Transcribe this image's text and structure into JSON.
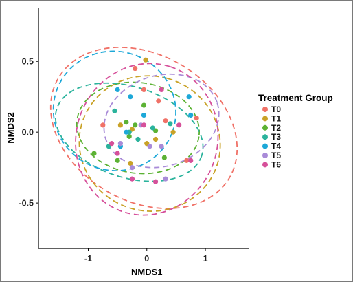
{
  "chart_data": {
    "type": "scatter",
    "xlabel": "NMDS1",
    "ylabel": "NMDS2",
    "xlim": [
      -1.85,
      1.75
    ],
    "ylim": [
      -0.82,
      0.88
    ],
    "x_ticks": [
      -1,
      0,
      1
    ],
    "y_ticks": [
      0.5,
      0.0,
      -0.5
    ],
    "x_tick_labels": [
      "-1",
      "0",
      "1"
    ],
    "y_tick_labels": [
      "0.5",
      "0.0",
      "-0.5"
    ],
    "grid": false,
    "legend": {
      "title": "Treatment Group",
      "position": "right"
    },
    "series": [
      {
        "name": "T0",
        "color": "#F07167",
        "points": [
          [
            -0.2,
            0.45
          ],
          [
            -0.05,
            0.3
          ],
          [
            0.2,
            0.22
          ],
          [
            0.85,
            0.1
          ],
          [
            0.32,
            0.08
          ],
          [
            0.68,
            -0.2
          ],
          [
            -0.75,
            0.05
          ]
        ],
        "ellipse": {
          "cx": -0.05,
          "cy": 0.03,
          "rx": 1.25,
          "ry": 0.7,
          "angle": -60
        }
      },
      {
        "name": "T1",
        "color": "#C9A227",
        "points": [
          [
            -0.02,
            0.51
          ],
          [
            0.45,
            0.0
          ],
          [
            0.15,
            -0.05
          ],
          [
            -0.25,
            0.02
          ],
          [
            0.0,
            -0.08
          ],
          [
            -0.28,
            -0.22
          ],
          [
            -0.45,
            0.05
          ]
        ],
        "ellipse": {
          "cx": 0.05,
          "cy": -0.08,
          "rx": 1.15,
          "ry": 0.5,
          "angle": -75
        }
      },
      {
        "name": "T2",
        "color": "#5CB234",
        "points": [
          [
            -0.05,
            0.19
          ],
          [
            -0.35,
            0.07
          ],
          [
            -0.3,
            -0.03
          ],
          [
            0.15,
            0.01
          ],
          [
            -0.2,
            0.05
          ],
          [
            0.3,
            -0.18
          ],
          [
            -0.9,
            -0.15
          ],
          [
            -0.5,
            -0.2
          ]
        ],
        "ellipse": {
          "cx": -0.15,
          "cy": 0.03,
          "rx": 1.05,
          "ry": 0.32,
          "angle": 8
        }
      },
      {
        "name": "T3",
        "color": "#2BB39C",
        "points": [
          [
            0.4,
            0.06
          ],
          [
            0.1,
            0.03
          ],
          [
            -0.3,
            0.0
          ],
          [
            -0.15,
            -0.05
          ],
          [
            -0.65,
            -0.1
          ],
          [
            -0.55,
            0.15
          ]
        ],
        "ellipse": {
          "cx": -0.3,
          "cy": 0.0,
          "rx": 1.3,
          "ry": 0.32,
          "angle": 18
        }
      },
      {
        "name": "T4",
        "color": "#1DA8D8",
        "points": [
          [
            -0.5,
            0.3
          ],
          [
            -0.28,
            0.25
          ],
          [
            -0.35,
            0.0
          ],
          [
            -0.05,
            0.12
          ],
          [
            0.72,
            0.25
          ],
          [
            -0.45,
            -0.1
          ],
          [
            0.75,
            0.12
          ]
        ],
        "ellipse": {
          "cx": -0.55,
          "cy": 0.15,
          "rx": 1.05,
          "ry": 0.42,
          "angle": 20
        }
      },
      {
        "name": "T5",
        "color": "#A98BD8",
        "points": [
          [
            -0.1,
            0.05
          ],
          [
            -0.45,
            -0.08
          ],
          [
            0.25,
            -0.1
          ],
          [
            0.05,
            -0.1
          ],
          [
            0.32,
            -0.33
          ],
          [
            -0.25,
            -0.25
          ]
        ],
        "ellipse": {
          "cx": 0.25,
          "cy": 0.08,
          "rx": 1.0,
          "ry": 0.32,
          "angle": -18
        }
      },
      {
        "name": "T6",
        "color": "#D6509A",
        "points": [
          [
            0.25,
            0.3
          ],
          [
            -0.05,
            0.05
          ],
          [
            -0.6,
            -0.08
          ],
          [
            -0.5,
            -0.15
          ],
          [
            -0.25,
            -0.33
          ],
          [
            0.15,
            -0.35
          ],
          [
            0.55,
            0.05
          ],
          [
            0.75,
            -0.2
          ]
        ],
        "ellipse": {
          "cx": 0.0,
          "cy": -0.05,
          "rx": 1.3,
          "ry": 0.5,
          "angle": -72
        }
      }
    ]
  }
}
